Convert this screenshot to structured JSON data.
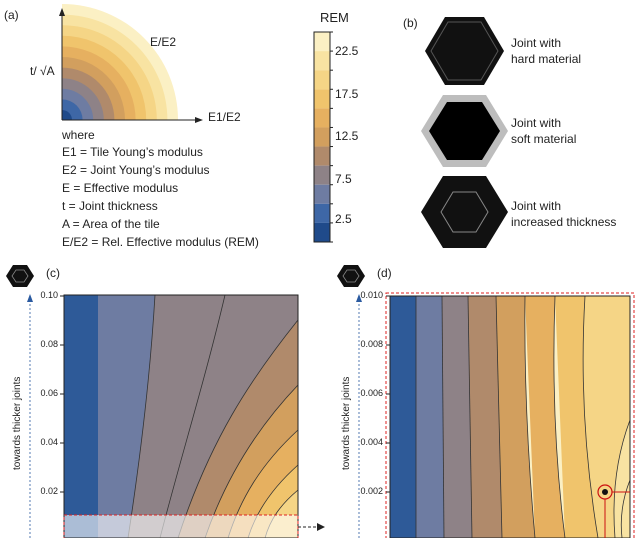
{
  "panel_a": {
    "label": "(a)",
    "axis_x": "E1/E2",
    "axis_y": "t/ √A",
    "curve_label": "E/E2",
    "where_heading": "where",
    "definitions": [
      "E1 = Tile Young’s modulus",
      "E2 = Joint Young’s modulus",
      "E   = Effective modulus",
      "t    = Joint thickness",
      "A   = Area of the tile",
      "E/E2 = Rel. Effective modulus (REM)"
    ]
  },
  "colorbar": {
    "title": "REM",
    "ticks": [
      "22.5",
      "17.5",
      "12.5",
      "7.5",
      "2.5"
    ],
    "colors": [
      "#fbf0c4",
      "#f8e3a2",
      "#f5d586",
      "#f0c46c",
      "#e6b060",
      "#d29f5e",
      "#b08a6b",
      "#8e8287",
      "#6e7ca2",
      "#3e67a6",
      "#1f4a8a"
    ]
  },
  "panel_b": {
    "label": "(b)",
    "items": [
      {
        "line1": "Joint with",
        "line2": "hard material"
      },
      {
        "line1": "Joint with",
        "line2": "soft material"
      },
      {
        "line1": "Joint with",
        "line2": "increased thickness"
      }
    ]
  },
  "panel_c": {
    "label": "(c)",
    "ylabel": "towards thicker joints",
    "yticks": [
      "0.10",
      "0.08",
      "0.06",
      "0.04",
      "0.02"
    ]
  },
  "panel_d": {
    "label": "(d)",
    "ylabel": "towards thicker joints",
    "yticks": [
      "0.010",
      "0.008",
      "0.006",
      "0.004",
      "0.002"
    ]
  }
}
